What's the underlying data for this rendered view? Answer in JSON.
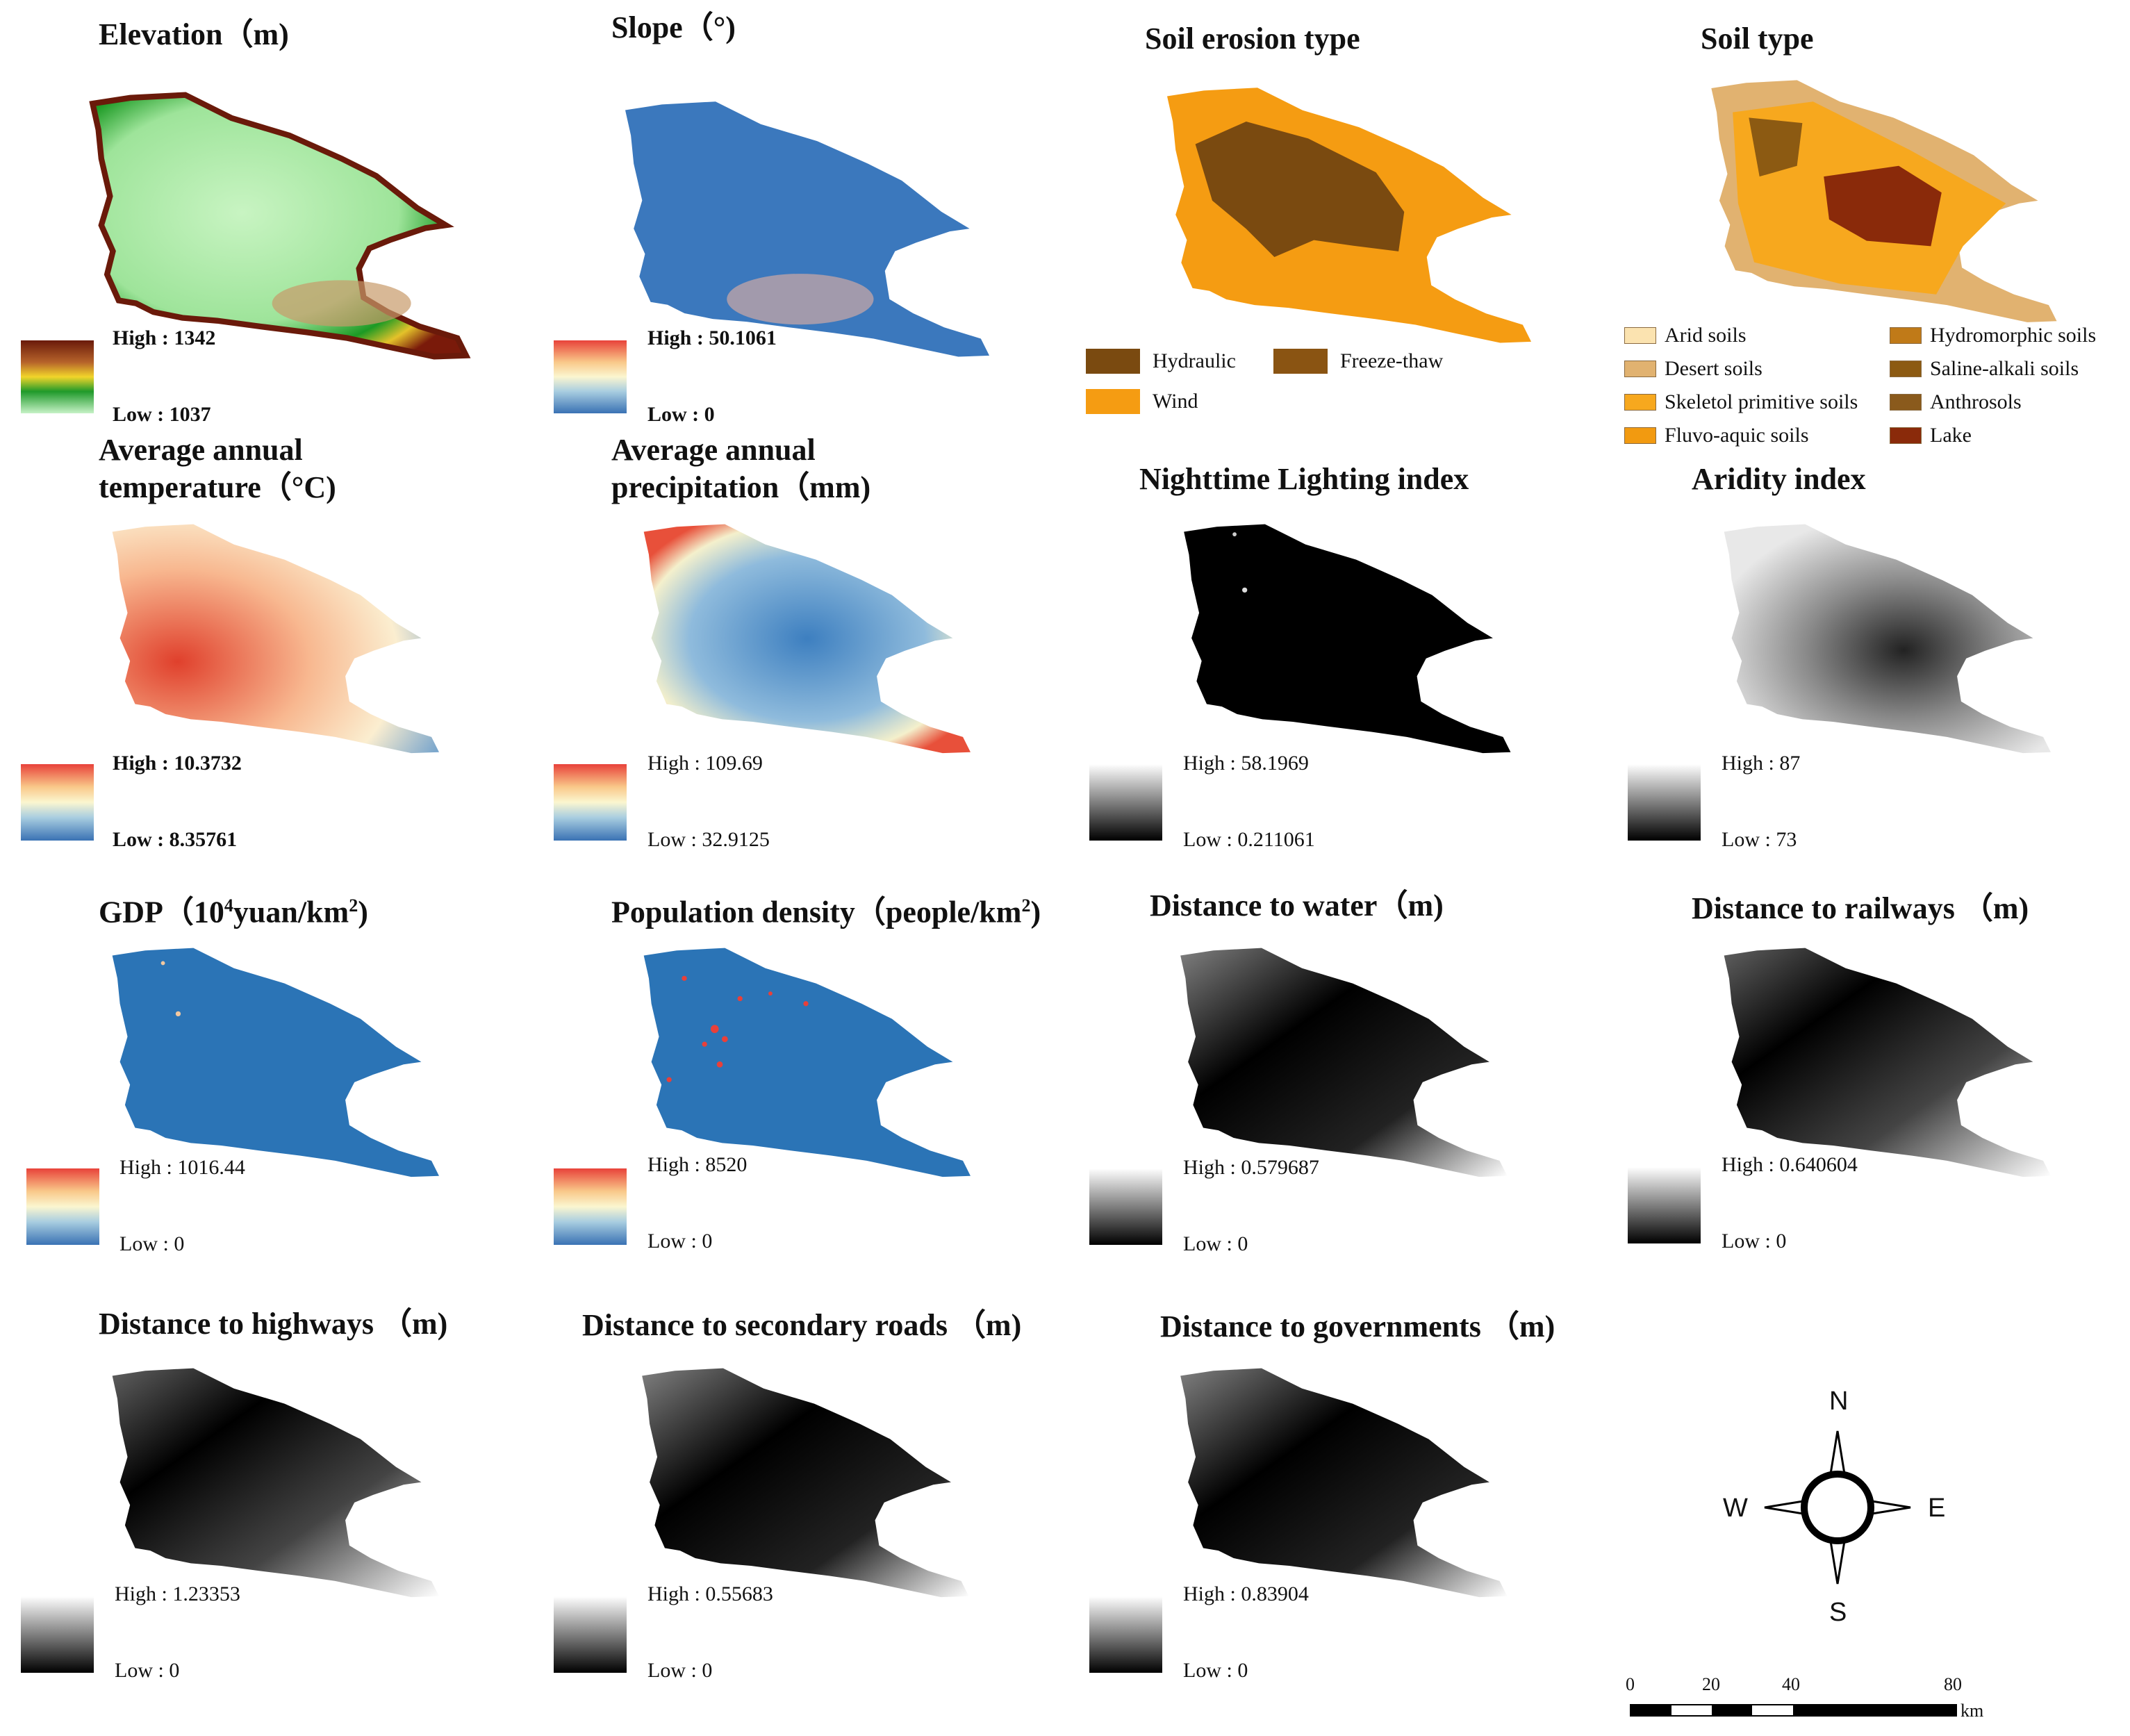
{
  "panels": {
    "elevation": {
      "title": "Elevation（m)",
      "high": "High : 1342",
      "low": "Low : 1037",
      "ramp": "green"
    },
    "slope": {
      "title": "Slope（°)",
      "high": "High : 50.1061",
      "low": "Low : 0",
      "ramp": "rdylbu"
    },
    "erosion": {
      "title": "Soil erosion type"
    },
    "soiltype": {
      "title": "Soil type"
    },
    "temperature": {
      "title_l1": "Average annual",
      "title_l2": "temperature（°C)",
      "high": "High : 10.3732",
      "low": "Low : 8.35761",
      "ramp": "rdylbu"
    },
    "precipitation": {
      "title_l1": "Average annual",
      "title_l2": "precipitation（mm)",
      "high": "High : 109.69",
      "low": "Low : 32.9125",
      "ramp": "rdylbu"
    },
    "nightlight": {
      "title": "Nighttime Lighting index",
      "high": "High : 58.1969",
      "low": "Low : 0.211061",
      "ramp": "gray"
    },
    "aridity": {
      "title": "Aridity index",
      "high": "High : 87",
      "low": "Low : 73",
      "ramp": "gray"
    },
    "gdp": {
      "title_main": "GDP（10",
      "title_sup": "4",
      "title_rest": "yuan/km",
      "title_sup2": "2",
      "title_end": ")",
      "high": "High : 1016.44",
      "low": "Low : 0",
      "ramp": "rdylbu"
    },
    "population": {
      "title_main": "Population density（people/km",
      "title_sup": "2",
      "title_end": ")",
      "high": "High : 8520",
      "low": "Low : 0",
      "ramp": "rdylbu"
    },
    "water": {
      "title": "Distance to water（m)",
      "high": "High : 0.579687",
      "low": "Low : 0",
      "ramp": "gray"
    },
    "railways": {
      "title": "Distance to railways （m)",
      "high": "High : 0.640604",
      "low": "Low : 0",
      "ramp": "gray"
    },
    "highways": {
      "title": "Distance to highways （m)",
      "high": "High : 1.23353",
      "low": "Low : 0",
      "ramp": "gray"
    },
    "secondary": {
      "title": "Distance to secondary roads （m)",
      "high": "High : 0.55683",
      "low": "Low : 0",
      "ramp": "gray"
    },
    "governments": {
      "title": "Distance to governments （m)",
      "high": "High : 0.83904",
      "low": "Low : 0",
      "ramp": "gray"
    }
  },
  "erosion_legend": [
    {
      "label": "Hydraulic",
      "color": "#7a4a10"
    },
    {
      "label": "Freeze-thaw",
      "color": "#8a5412"
    },
    {
      "label": "Wind",
      "color": "#f59c12"
    }
  ],
  "soil_legend": [
    {
      "label": "Arid soils",
      "color": "#fbe3b0"
    },
    {
      "label": "Desert soils",
      "color": "#e1b270"
    },
    {
      "label": "Skeletol primitive soils",
      "color": "#f7a81e"
    },
    {
      "label": "Fluvo-aquic soils",
      "color": "#f29a10"
    },
    {
      "label": "Hydromorphic soils",
      "color": "#c07a18"
    },
    {
      "label": "Saline-alkali soils",
      "color": "#8c5a12"
    },
    {
      "label": "Anthrosols",
      "color": "#8a5a1c"
    },
    {
      "label": "Lake",
      "color": "#8a2a0a"
    }
  ],
  "compass": {
    "n": "N",
    "s": "S",
    "e": "E",
    "w": "W"
  },
  "scalebar": {
    "ticks": [
      "0",
      "20",
      "40",
      "80"
    ],
    "unit": "km"
  },
  "colors": {
    "blue": "#2b74b6",
    "orange": "#f59c12",
    "brown": "#7a4a10"
  }
}
